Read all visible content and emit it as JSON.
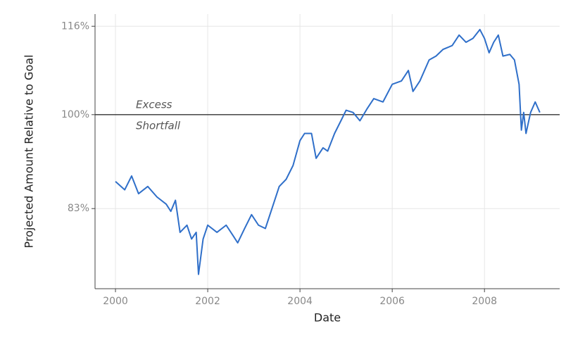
{
  "chart_data": {
    "type": "line",
    "x_label": "Date",
    "y_label": "Projected Amount Relative to Goal",
    "annotations": [
      "Excess",
      "Shortfall"
    ],
    "reference_line": 100,
    "grid": true,
    "xlim": [
      1999.557,
      2009.63
    ],
    "xticks": [
      2000,
      2002,
      2004,
      2006,
      2008
    ],
    "ylim": [
      68.5,
      118.2
    ],
    "yticks": [
      {
        "value": 83,
        "label": "83%"
      },
      {
        "value": 100,
        "label": "100%"
      },
      {
        "value": 116,
        "label": "116%"
      }
    ],
    "x": [
      2000.0,
      2000.2,
      2000.35,
      2000.5,
      2000.7,
      2000.9,
      2001.1,
      2001.2,
      2001.3,
      2001.4,
      2001.55,
      2001.65,
      2001.75,
      2001.8,
      2001.9,
      2002.0,
      2002.2,
      2002.4,
      2002.55,
      2002.65,
      2002.8,
      2002.95,
      2003.1,
      2003.25,
      2003.4,
      2003.55,
      2003.7,
      2003.85,
      2004.0,
      2004.1,
      2004.25,
      2004.35,
      2004.5,
      2004.6,
      2004.75,
      2004.9,
      2005.0,
      2005.15,
      2005.3,
      2005.45,
      2005.6,
      2005.8,
      2006.0,
      2006.2,
      2006.35,
      2006.45,
      2006.6,
      2006.8,
      2006.95,
      2007.1,
      2007.3,
      2007.45,
      2007.6,
      2007.75,
      2007.9,
      2008.0,
      2008.1,
      2008.2,
      2008.3,
      2008.4,
      2008.55,
      2008.65,
      2008.75,
      2008.8,
      2008.85,
      2008.9,
      2009.0,
      2009.1,
      2009.2
    ],
    "series": [
      {
        "name": "Projected Amount",
        "color": "#2f6fc9",
        "values": [
          87.9,
          86.4,
          88.9,
          85.7,
          87,
          85.1,
          83.8,
          82.5,
          84.5,
          78.7,
          80,
          77.5,
          78.7,
          71.1,
          77.5,
          80,
          78.7,
          80,
          78.1,
          76.8,
          79.4,
          81.9,
          80,
          79.4,
          83.2,
          87,
          88.3,
          90.8,
          95.3,
          96.6,
          96.6,
          92.1,
          94,
          93.4,
          96.6,
          99.1,
          100.8,
          100.4,
          98.9,
          101,
          102.9,
          102.3,
          105.5,
          106.1,
          108,
          104.2,
          106.1,
          109.9,
          110.6,
          111.8,
          112.5,
          114.4,
          113.1,
          113.8,
          115.4,
          113.8,
          111.2,
          113.1,
          114.4,
          110.6,
          110.9,
          109.9,
          105.5,
          97.2,
          100.4,
          96.6,
          100.4,
          102.3,
          100.4
        ]
      }
    ]
  }
}
